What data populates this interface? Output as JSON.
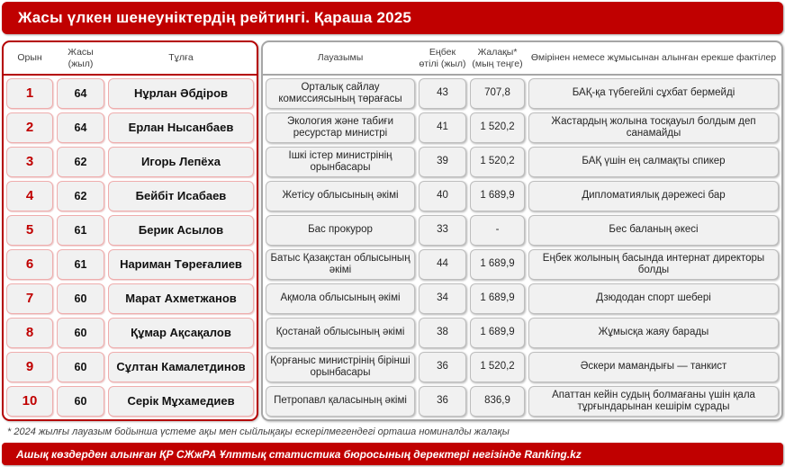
{
  "title": "Жасы үлкен шенеуніктердің рейтингі. Қараша 2025",
  "colors": {
    "accent_red": "#C00000",
    "cell_background": "#F1F1F1",
    "left_cell_border": "#EFADAD",
    "right_cell_border": "#BDBDBD",
    "title_text": "#FFFFFF"
  },
  "chart_data": {
    "type": "table",
    "title": "Жасы үлкен шенеуніктердің рейтингі. Қараша 2025",
    "columns": [
      {
        "key": "rank",
        "label": "Орын"
      },
      {
        "key": "age",
        "label": "Жасы (жыл)"
      },
      {
        "key": "person",
        "label": "Тұлға"
      },
      {
        "key": "position",
        "label": "Лауазымы"
      },
      {
        "key": "experience",
        "label": "Еңбек өтілі (жыл)"
      },
      {
        "key": "salary",
        "label": "Жалақы* (мың теңге)"
      },
      {
        "key": "facts",
        "label": "Өмірінен немесе жұмысынан алынған ерекше фактілер"
      }
    ],
    "rows": [
      {
        "rank": "1",
        "age": "64",
        "person": "Нұрлан Әбдіров",
        "position": "Орталық сайлау комиссиясының төрағасы",
        "experience": "43",
        "salary": "707,8",
        "facts": "БАҚ-қа түбегейлі сұхбат бермейді"
      },
      {
        "rank": "2",
        "age": "64",
        "person": "Ерлан Нысанбаев",
        "position": "Экология және табиғи ресурстар министрі",
        "experience": "41",
        "salary": "1 520,2",
        "facts": "Жастардың жолына тосқауыл болдым деп санамайды"
      },
      {
        "rank": "3",
        "age": "62",
        "person": "Игорь Лепёха",
        "position": "Ішкі істер министрінің орынбасары",
        "experience": "39",
        "salary": "1 520,2",
        "facts": "БАҚ үшін ең салмақты спикер"
      },
      {
        "rank": "4",
        "age": "62",
        "person": "Бейбіт Исабаев",
        "position": "Жетісу облысының әкімі",
        "experience": "40",
        "salary": "1 689,9",
        "facts": "Дипломатиялық дәрежесі бар"
      },
      {
        "rank": "5",
        "age": "61",
        "person": "Берик Асылов",
        "position": "Бас прокурор",
        "experience": "33",
        "salary": "-",
        "facts": "Бес баланың әкесі"
      },
      {
        "rank": "6",
        "age": "61",
        "person": "Нариман Төреғалиев",
        "position": "Батыс Қазақстан облысының әкімі",
        "experience": "44",
        "salary": "1 689,9",
        "facts": "Еңбек жолының басында интернат директоры болды"
      },
      {
        "rank": "7",
        "age": "60",
        "person": "Марат Ахметжанов",
        "position": "Ақмола облысының әкімі",
        "experience": "34",
        "salary": "1 689,9",
        "facts": "Дзюдодан спорт шебері"
      },
      {
        "rank": "8",
        "age": "60",
        "person": "Құмар Ақсақалов",
        "position": "Қостанай облысының әкімі",
        "experience": "38",
        "salary": "1 689,9",
        "facts": "Жұмысқа жаяу барады"
      },
      {
        "rank": "9",
        "age": "60",
        "person": "Сұлтан Камалетдинов",
        "position": "Қорғаныс министрінің бірінші орынбасары",
        "experience": "36",
        "salary": "1 520,2",
        "facts": "Әскери мамандығы — танкист"
      },
      {
        "rank": "10",
        "age": "60",
        "person": "Серік Мұхамедиев",
        "position": "Петропавл қаласының әкімі",
        "experience": "36",
        "salary": "836,9",
        "facts": "Апаттан кейін судың болмағаны үшін қала тұрғындарынан кешірім сұрады"
      }
    ]
  },
  "footnote": "* 2024 жылғы лауазым бойынша үстеме ақы мен сыйлықақы ескерілмегендегі орташа номиналды жалақы",
  "source": "Ашық көздерден алынған ҚР СЖжРА Ұлттық статистика бюросының деректері негізінде Ranking.kz"
}
